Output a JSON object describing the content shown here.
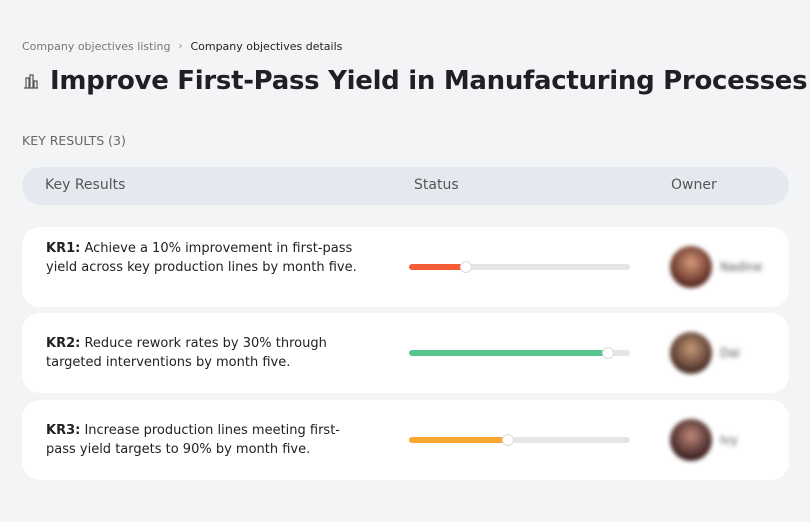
{
  "breadcrumb": {
    "parent": "Company objectives listing",
    "current": "Company objectives details"
  },
  "page": {
    "icon": "building-chart-icon",
    "title": "Improve First-Pass Yield in Manufacturing Processes"
  },
  "section_label": "KEY RESULTS (3)",
  "table": {
    "headers": [
      "Key Results",
      "Status",
      "Owner"
    ]
  },
  "key_results": [
    {
      "id": "KR1:",
      "text": " Achieve a 10% improvement in first-pass yield across key production lines by month five.",
      "progress": 26,
      "color": "#f65d37",
      "owner": "Nadine"
    },
    {
      "id": "KR2:",
      "text": " Reduce rework rates by 30% through targeted interventions by month five.",
      "progress": 90,
      "color": "#58c48f",
      "owner": "Dai"
    },
    {
      "id": "KR3:",
      "text": " Increase production lines meeting first-pass yield targets to 90% by month five.",
      "progress": 45,
      "color": "#fba830",
      "owner": "Ivy"
    }
  ]
}
